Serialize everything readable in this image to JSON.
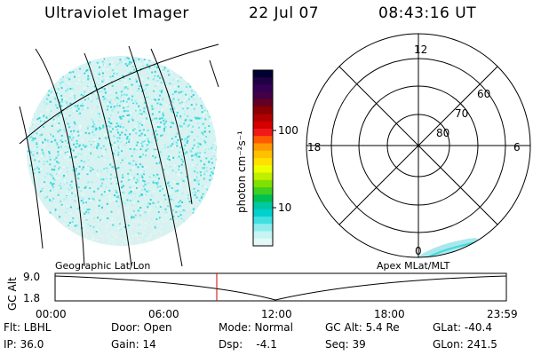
{
  "header": {
    "title": "Ultraviolet Imager",
    "date": "22 Jul 07",
    "time": "08:43:16 UT"
  },
  "colorbar": {
    "unit_label": "photon cm⁻²s⁻¹",
    "ticks": [
      "100",
      "10"
    ],
    "colors": [
      "#000033",
      "#220044",
      "#330055",
      "#440044",
      "#660022",
      "#8b0000",
      "#b00000",
      "#d40000",
      "#f01818",
      "#ff5a00",
      "#ff9900",
      "#ffc000",
      "#ffe000",
      "#eeff00",
      "#c0f000",
      "#80e000",
      "#40d020",
      "#00c050",
      "#00c8a0",
      "#00d0d0",
      "#40e0e0",
      "#90ecec",
      "#c8f4f4",
      "#e4f8f8"
    ]
  },
  "polar": {
    "mlt_labels": {
      "top": "12",
      "left": "18",
      "right": "6",
      "bottom": "0"
    },
    "lat_labels": [
      "60",
      "70",
      "80"
    ]
  },
  "timeline": {
    "left_label": "Geographic Lat/Lon",
    "right_label": "Apex MLat/MLT",
    "y_axis_label": "GC Alt",
    "y_ticks": [
      "9.0",
      "1.8"
    ],
    "x_ticks": [
      "00:00",
      "06:00",
      "12:00",
      "18:00",
      "23:59"
    ],
    "current_time_marker_color": "#cc0000"
  },
  "info": {
    "flt": "Flt: LBHL",
    "ip": "IP: 36.0",
    "door": "Door: Open",
    "gain": "Gain: 14",
    "mode": "Mode: Normal",
    "dsp": "Dsp:    -4.1",
    "gc_alt": "GC Alt: 5.4 Re",
    "seq": "Seq: 39",
    "glat": "GLat: -40.4",
    "glon": "GLon: 241.5"
  }
}
